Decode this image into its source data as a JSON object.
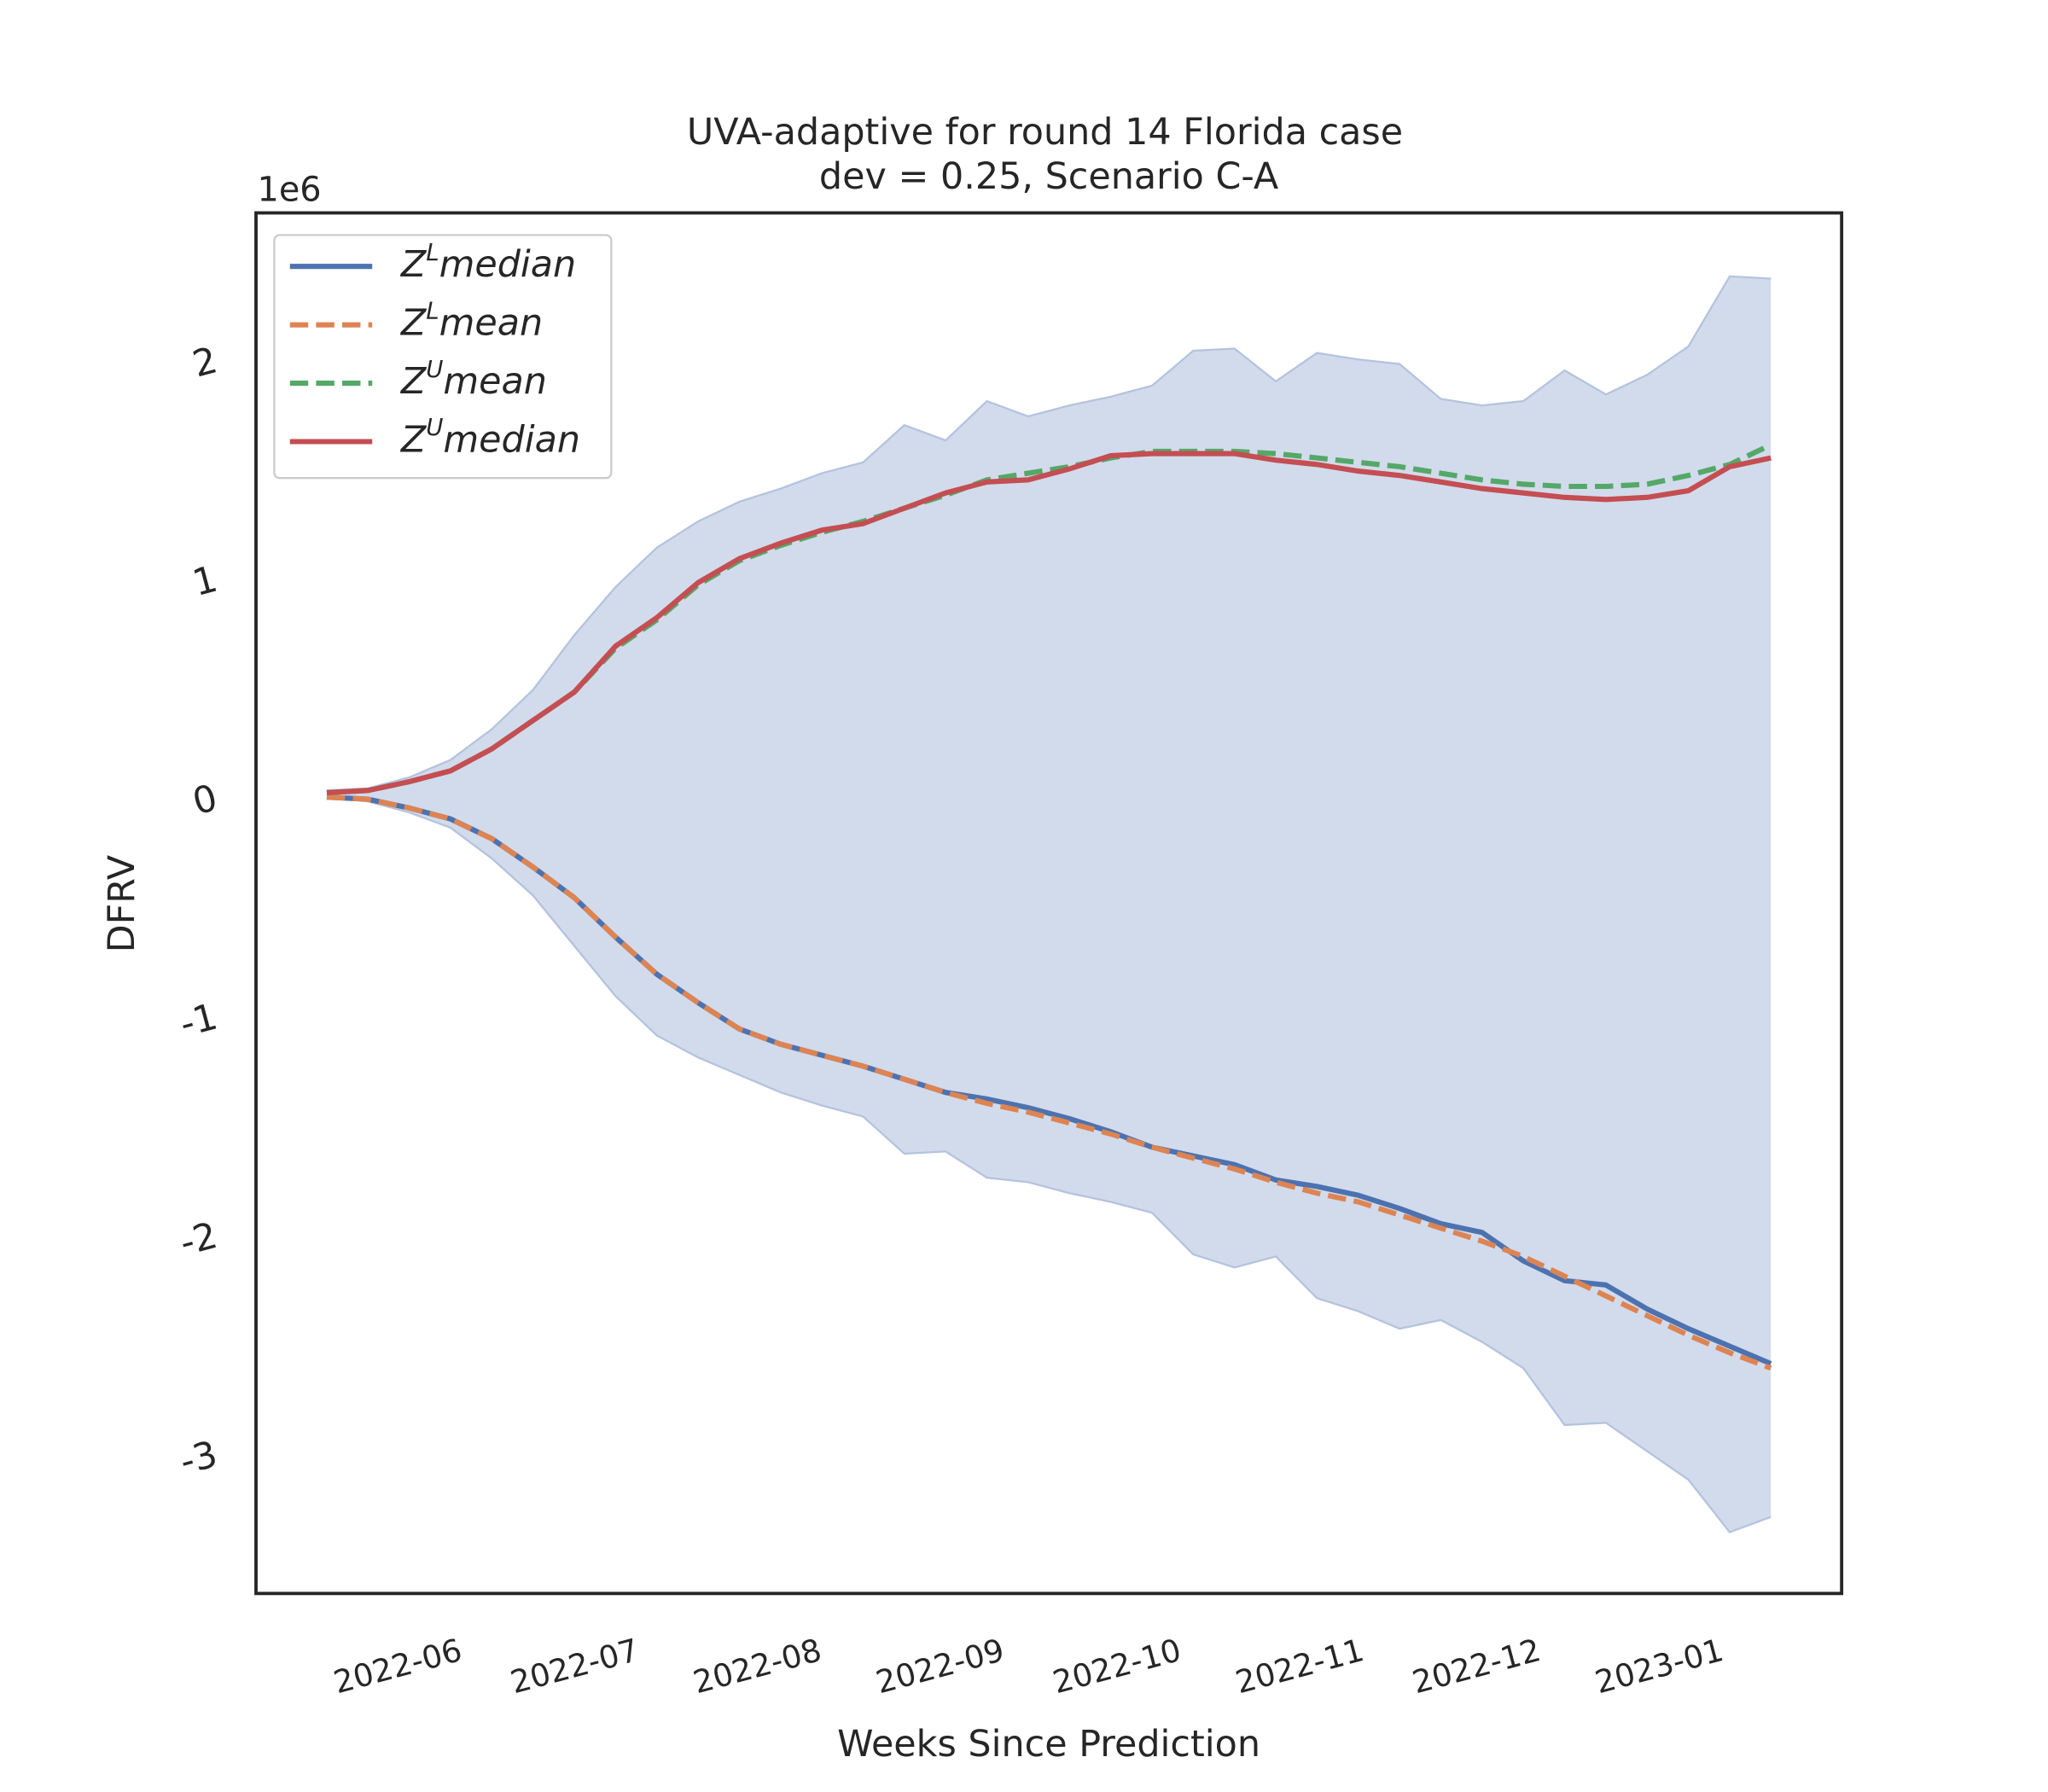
{
  "chart_data": {
    "type": "line",
    "title": "UVA-adaptive for round 14 Florida case",
    "subtitle": "dev = 0.25, Scenario C-A",
    "x_label": "Weeks Since Prediction",
    "y_label": "DFRV",
    "y_offset_label": "1e6",
    "x": [
      "2022-05-15",
      "2022-05-22",
      "2022-05-29",
      "2022-06-05",
      "2022-06-12",
      "2022-06-19",
      "2022-06-26",
      "2022-07-03",
      "2022-07-10",
      "2022-07-17",
      "2022-07-24",
      "2022-07-31",
      "2022-08-07",
      "2022-08-14",
      "2022-08-21",
      "2022-08-28",
      "2022-09-04",
      "2022-09-11",
      "2022-09-18",
      "2022-09-25",
      "2022-10-02",
      "2022-10-09",
      "2022-10-16",
      "2022-10-23",
      "2022-10-30",
      "2022-11-06",
      "2022-11-13",
      "2022-11-20",
      "2022-11-27",
      "2022-12-04",
      "2022-12-11",
      "2022-12-18",
      "2022-12-25",
      "2023-01-01",
      "2023-01-08",
      "2023-01-15"
    ],
    "band": {
      "color": "#b4c3de",
      "upper": [
        0.04,
        0.05,
        0.1,
        0.18,
        0.32,
        0.5,
        0.75,
        0.97,
        1.15,
        1.27,
        1.36,
        1.42,
        1.49,
        1.54,
        1.71,
        1.64,
        1.82,
        1.75,
        1.8,
        1.84,
        1.89,
        2.05,
        2.06,
        1.91,
        2.04,
        2.01,
        1.99,
        1.83,
        1.8,
        1.82,
        1.96,
        1.85,
        1.94,
        2.07,
        2.39,
        2.38
      ],
      "lower": [
        0.01,
        -0.01,
        -0.06,
        -0.13,
        -0.27,
        -0.44,
        -0.67,
        -0.9,
        -1.08,
        -1.18,
        -1.26,
        -1.34,
        -1.4,
        -1.45,
        -1.62,
        -1.61,
        -1.73,
        -1.75,
        -1.8,
        -1.84,
        -1.89,
        -2.08,
        -2.14,
        -2.09,
        -2.28,
        -2.34,
        -2.42,
        -2.38,
        -2.48,
        -2.6,
        -2.86,
        -2.85,
        -2.98,
        -3.11,
        -3.35,
        -3.28
      ]
    },
    "series": [
      {
        "name": "ZLmedian",
        "color": "#4c72b0",
        "dashed": false,
        "values": [
          0.01,
          0,
          -0.04,
          -0.09,
          -0.18,
          -0.31,
          -0.45,
          -0.63,
          -0.8,
          -0.93,
          -1.05,
          -1.12,
          -1.17,
          -1.22,
          -1.28,
          -1.34,
          -1.37,
          -1.41,
          -1.46,
          -1.52,
          -1.59,
          -1.63,
          -1.67,
          -1.74,
          -1.77,
          -1.81,
          -1.87,
          -1.94,
          -1.98,
          -2.11,
          -2.2,
          -2.22,
          -2.33,
          -2.42,
          -2.5,
          -2.58
        ]
      },
      {
        "name": "ZLmean",
        "color": "#dd8452",
        "dashed": true,
        "values": [
          0.01,
          0,
          -0.04,
          -0.09,
          -0.18,
          -0.31,
          -0.45,
          -0.63,
          -0.8,
          -0.93,
          -1.05,
          -1.12,
          -1.17,
          -1.22,
          -1.28,
          -1.34,
          -1.39,
          -1.43,
          -1.48,
          -1.53,
          -1.59,
          -1.64,
          -1.69,
          -1.75,
          -1.8,
          -1.84,
          -1.9,
          -1.96,
          -2.02,
          -2.09,
          -2.18,
          -2.27,
          -2.36,
          -2.45,
          -2.53,
          -2.6
        ]
      },
      {
        "name": "ZUmean",
        "color": "#55a868",
        "dashed": true,
        "values": [
          0.03,
          0.04,
          0.08,
          0.13,
          0.23,
          0.36,
          0.49,
          0.69,
          0.82,
          0.98,
          1.09,
          1.16,
          1.22,
          1.27,
          1.33,
          1.39,
          1.46,
          1.49,
          1.52,
          1.56,
          1.59,
          1.59,
          1.59,
          1.58,
          1.56,
          1.54,
          1.52,
          1.49,
          1.46,
          1.44,
          1.43,
          1.43,
          1.44,
          1.48,
          1.53,
          1.62
        ]
      },
      {
        "name": "ZUmedian",
        "color": "#c44e52",
        "dashed": false,
        "values": [
          0.03,
          0.04,
          0.08,
          0.13,
          0.23,
          0.36,
          0.49,
          0.7,
          0.83,
          0.99,
          1.1,
          1.17,
          1.23,
          1.26,
          1.33,
          1.4,
          1.45,
          1.46,
          1.51,
          1.57,
          1.58,
          1.58,
          1.58,
          1.55,
          1.53,
          1.5,
          1.48,
          1.45,
          1.42,
          1.4,
          1.38,
          1.37,
          1.38,
          1.41,
          1.52,
          1.56
        ]
      }
    ],
    "xlim": [
      "2022-05-03",
      "2023-01-27"
    ],
    "xticks": [
      {
        "value": "2022-06-01",
        "label": "2022-06"
      },
      {
        "value": "2022-07-01",
        "label": "2022-07"
      },
      {
        "value": "2022-08-01",
        "label": "2022-08"
      },
      {
        "value": "2022-09-01",
        "label": "2022-09"
      },
      {
        "value": "2022-10-01",
        "label": "2022-10"
      },
      {
        "value": "2022-11-01",
        "label": "2022-11"
      },
      {
        "value": "2022-12-01",
        "label": "2022-12"
      },
      {
        "value": "2023-01-01",
        "label": "2023-01"
      }
    ],
    "ylim": [
      -3.63,
      2.68
    ],
    "yticks": [
      -3,
      -2,
      -1,
      0,
      1,
      2
    ],
    "grid": false,
    "legend": "upper left"
  }
}
